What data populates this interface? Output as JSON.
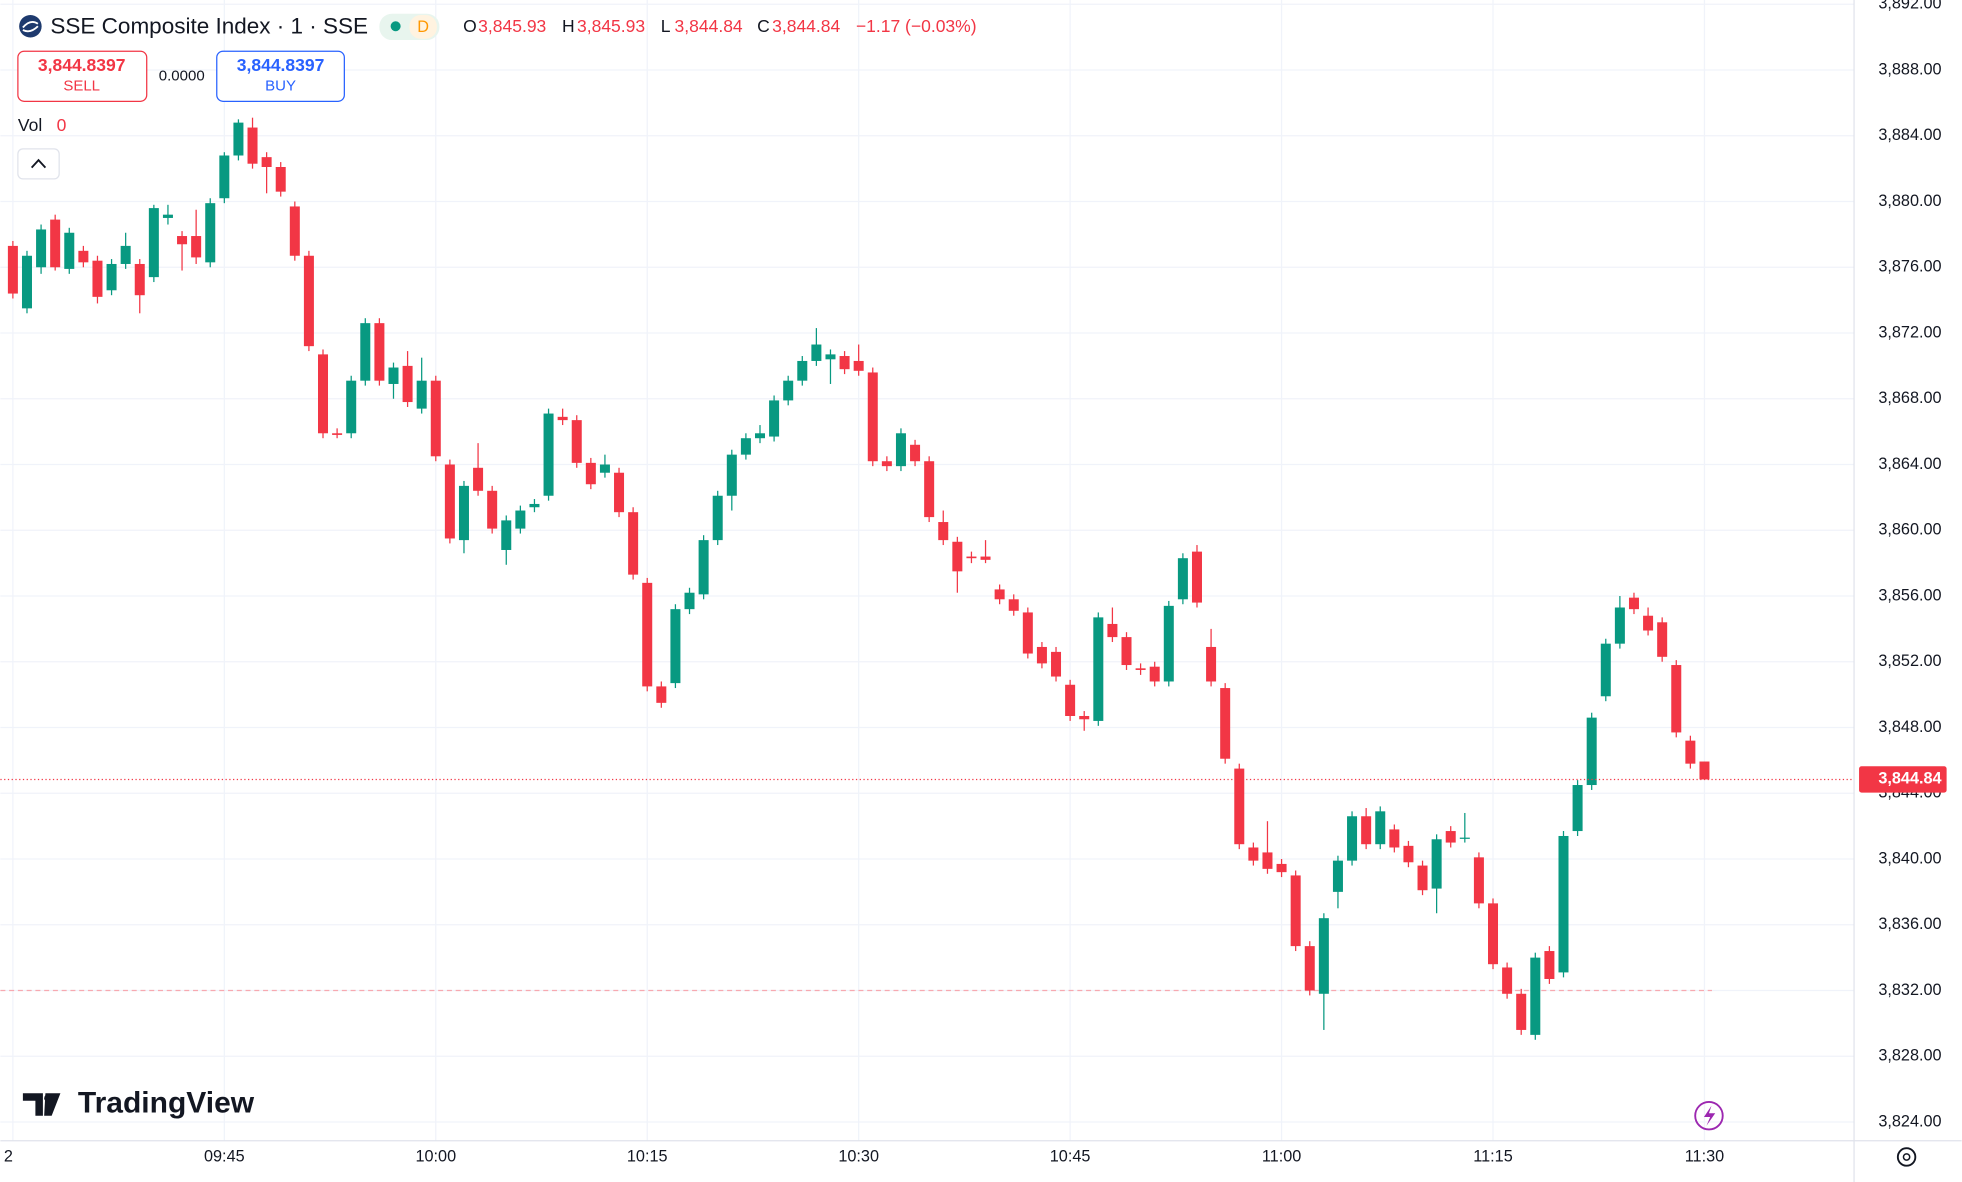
{
  "chart_data": {
    "type": "candlestick",
    "title": "SSE Composite Index · 1 · SSE",
    "interval_badge": "D",
    "legend": {
      "o_label": "O",
      "o": "3,845.93",
      "h_label": "H",
      "h": "3,845.93",
      "l_label": "L",
      "l": "3,844.84",
      "c_label": "C",
      "c": "3,844.84",
      "change": "−1.17 (−0.03%)"
    },
    "sell": {
      "price": "3,844.8397",
      "label": "SELL"
    },
    "spread": "0.0000",
    "buy": {
      "price": "3,844.8397",
      "label": "BUY"
    },
    "volume": {
      "label": "Vol",
      "value": "0"
    },
    "logo": "TradingView",
    "up_color": "#089981",
    "down_color": "#f23645",
    "grid": true,
    "ylim": [
      3822.86,
      3892.26
    ],
    "yticks": [
      {
        "value": 3824,
        "label": "3,824.00"
      },
      {
        "value": 3828,
        "label": "3,828.00"
      },
      {
        "value": 3832,
        "label": "3,832.00"
      },
      {
        "value": 3836,
        "label": "3,836.00"
      },
      {
        "value": 3840,
        "label": "3,840.00"
      },
      {
        "value": 3844,
        "label": "3,844.00"
      },
      {
        "value": 3848,
        "label": "3,848.00"
      },
      {
        "value": 3852,
        "label": "3,852.00"
      },
      {
        "value": 3856,
        "label": "3,856.00"
      },
      {
        "value": 3860,
        "label": "3,860.00"
      },
      {
        "value": 3864,
        "label": "3,864.00"
      },
      {
        "value": 3868,
        "label": "3,868.00"
      },
      {
        "value": 3872,
        "label": "3,872.00"
      },
      {
        "value": 3876,
        "label": "3,876.00"
      },
      {
        "value": 3880,
        "label": "3,880.00"
      },
      {
        "value": 3884,
        "label": "3,884.00"
      },
      {
        "value": 3888,
        "label": "3,888.00"
      },
      {
        "value": 3892,
        "label": "3,892.00"
      }
    ],
    "xticks": [
      {
        "value": 0,
        "label": "2"
      },
      {
        "value": 15,
        "label": "09:45"
      },
      {
        "value": 30,
        "label": "10:00"
      },
      {
        "value": 45,
        "label": "10:15"
      },
      {
        "value": 60,
        "label": "10:30"
      },
      {
        "value": 75,
        "label": "10:45"
      },
      {
        "value": 90,
        "label": "11:00"
      },
      {
        "value": 105,
        "label": "11:15"
      },
      {
        "value": 120,
        "label": "11:30"
      }
    ],
    "last_price": {
      "value": 3844.84,
      "label": "3,844.84"
    },
    "reference_line": 3832,
    "ohlc": [
      [
        3877.3,
        3877.6,
        3874.1,
        3874.4
      ],
      [
        3873.5,
        3877.0,
        3873.2,
        3876.7
      ],
      [
        3876.0,
        3878.6,
        3875.6,
        3878.3
      ],
      [
        3878.9,
        3879.2,
        3875.8,
        3876.0
      ],
      [
        3875.9,
        3878.4,
        3875.6,
        3878.1
      ],
      [
        3877.0,
        3877.3,
        3876.0,
        3876.3
      ],
      [
        3876.4,
        3876.7,
        3873.8,
        3874.2
      ],
      [
        3874.6,
        3876.5,
        3874.3,
        3876.2
      ],
      [
        3876.2,
        3878.1,
        3875.9,
        3877.3
      ],
      [
        3876.2,
        3876.5,
        3873.2,
        3874.3
      ],
      [
        3875.4,
        3879.8,
        3875.1,
        3879.6
      ],
      [
        3879.0,
        3879.8,
        3878.6,
        3879.2
      ],
      [
        3877.9,
        3878.2,
        3875.8,
        3877.4
      ],
      [
        3877.9,
        3879.5,
        3876.2,
        3876.6
      ],
      [
        3876.3,
        3880.2,
        3876.0,
        3879.9
      ],
      [
        3880.2,
        3883.0,
        3879.9,
        3882.8
      ],
      [
        3882.8,
        3885.0,
        3882.5,
        3884.8
      ],
      [
        3884.5,
        3885.1,
        3882.0,
        3882.3
      ],
      [
        3882.7,
        3883.0,
        3880.5,
        3882.1
      ],
      [
        3882.1,
        3882.4,
        3880.3,
        3880.6
      ],
      [
        3879.7,
        3880.0,
        3876.4,
        3876.7
      ],
      [
        3876.7,
        3877.0,
        3870.9,
        3871.2
      ],
      [
        3870.7,
        3871.0,
        3865.6,
        3865.9
      ],
      [
        3865.9,
        3866.2,
        3865.6,
        3865.8
      ],
      [
        3865.9,
        3869.4,
        3865.6,
        3869.1
      ],
      [
        3869.1,
        3872.9,
        3868.8,
        3872.6
      ],
      [
        3872.6,
        3872.9,
        3868.8,
        3869.1
      ],
      [
        3868.9,
        3870.2,
        3868.0,
        3869.9
      ],
      [
        3870.0,
        3870.9,
        3867.5,
        3867.8
      ],
      [
        3867.4,
        3870.5,
        3867.1,
        3869.1
      ],
      [
        3869.1,
        3869.4,
        3864.2,
        3864.5
      ],
      [
        3864.0,
        3864.3,
        3859.2,
        3859.5
      ],
      [
        3859.4,
        3863.0,
        3858.6,
        3862.7
      ],
      [
        3863.8,
        3865.3,
        3862.1,
        3862.4
      ],
      [
        3862.4,
        3862.7,
        3859.8,
        3860.1
      ],
      [
        3858.8,
        3860.9,
        3857.9,
        3860.6
      ],
      [
        3860.1,
        3861.5,
        3859.8,
        3861.2
      ],
      [
        3861.4,
        3861.9,
        3861.1,
        3861.6
      ],
      [
        3862.1,
        3867.4,
        3861.8,
        3867.1
      ],
      [
        3866.9,
        3867.4,
        3866.4,
        3866.7
      ],
      [
        3866.7,
        3867.0,
        3863.8,
        3864.1
      ],
      [
        3864.1,
        3864.4,
        3862.5,
        3862.8
      ],
      [
        3863.5,
        3864.6,
        3863.2,
        3864.0
      ],
      [
        3863.5,
        3863.8,
        3860.8,
        3861.1
      ],
      [
        3861.1,
        3861.4,
        3857.0,
        3857.3
      ],
      [
        3856.8,
        3857.1,
        3850.2,
        3850.5
      ],
      [
        3850.5,
        3850.8,
        3849.2,
        3849.5
      ],
      [
        3850.7,
        3855.5,
        3850.4,
        3855.2
      ],
      [
        3855.2,
        3856.5,
        3854.9,
        3856.2
      ],
      [
        3856.1,
        3859.7,
        3855.8,
        3859.4
      ],
      [
        3859.4,
        3862.4,
        3859.1,
        3862.1
      ],
      [
        3862.1,
        3864.9,
        3861.2,
        3864.6
      ],
      [
        3864.6,
        3865.9,
        3864.3,
        3865.6
      ],
      [
        3865.6,
        3866.4,
        3865.3,
        3865.9
      ],
      [
        3865.7,
        3868.2,
        3865.4,
        3867.9
      ],
      [
        3867.9,
        3869.4,
        3867.6,
        3869.1
      ],
      [
        3869.1,
        3870.6,
        3868.8,
        3870.3
      ],
      [
        3870.3,
        3872.3,
        3870.0,
        3871.3
      ],
      [
        3870.4,
        3871.0,
        3868.9,
        3870.7
      ],
      [
        3870.6,
        3870.9,
        3869.5,
        3869.8
      ],
      [
        3870.3,
        3871.3,
        3869.4,
        3869.7
      ],
      [
        3869.6,
        3869.9,
        3863.9,
        3864.2
      ],
      [
        3864.2,
        3864.5,
        3863.6,
        3863.9
      ],
      [
        3863.9,
        3866.2,
        3863.6,
        3865.9
      ],
      [
        3865.2,
        3865.5,
        3863.9,
        3864.2
      ],
      [
        3864.2,
        3864.5,
        3860.5,
        3860.8
      ],
      [
        3860.5,
        3861.2,
        3859.1,
        3859.4
      ],
      [
        3859.3,
        3859.6,
        3856.2,
        3857.5
      ],
      [
        3858.4,
        3858.7,
        3858.0,
        3858.3
      ],
      [
        3858.4,
        3859.4,
        3858.0,
        3858.2
      ],
      [
        3856.4,
        3856.7,
        3855.5,
        3855.8
      ],
      [
        3855.8,
        3856.1,
        3854.8,
        3855.1
      ],
      [
        3855.0,
        3855.3,
        3852.2,
        3852.5
      ],
      [
        3852.9,
        3853.2,
        3851.6,
        3851.9
      ],
      [
        3852.6,
        3852.9,
        3850.8,
        3851.1
      ],
      [
        3850.6,
        3850.9,
        3848.4,
        3848.7
      ],
      [
        3848.7,
        3849.0,
        3847.8,
        3848.5
      ],
      [
        3848.4,
        3855.0,
        3848.1,
        3854.7
      ],
      [
        3854.3,
        3855.3,
        3853.2,
        3853.5
      ],
      [
        3853.5,
        3853.8,
        3851.5,
        3851.8
      ],
      [
        3851.6,
        3851.9,
        3851.2,
        3851.5
      ],
      [
        3851.7,
        3852.0,
        3850.5,
        3850.8
      ],
      [
        3850.8,
        3855.7,
        3850.5,
        3855.4
      ],
      [
        3855.8,
        3858.6,
        3855.5,
        3858.3
      ],
      [
        3858.7,
        3859.1,
        3855.3,
        3855.6
      ],
      [
        3852.9,
        3854.0,
        3850.5,
        3850.8
      ],
      [
        3850.4,
        3850.7,
        3845.8,
        3846.1
      ],
      [
        3845.5,
        3845.8,
        3840.6,
        3840.9
      ],
      [
        3840.7,
        3841.0,
        3839.6,
        3839.9
      ],
      [
        3840.4,
        3842.3,
        3839.1,
        3839.4
      ],
      [
        3839.7,
        3840.0,
        3838.9,
        3839.2
      ],
      [
        3839.0,
        3839.3,
        3834.4,
        3834.7
      ],
      [
        3834.7,
        3835.0,
        3831.7,
        3832.0
      ],
      [
        3831.8,
        3836.7,
        3829.6,
        3836.4
      ],
      [
        3838.0,
        3840.2,
        3837.0,
        3839.9
      ],
      [
        3839.9,
        3842.9,
        3839.6,
        3842.6
      ],
      [
        3842.6,
        3843.1,
        3840.6,
        3840.9
      ],
      [
        3840.9,
        3843.2,
        3840.6,
        3842.9
      ],
      [
        3841.8,
        3842.1,
        3840.4,
        3840.7
      ],
      [
        3840.8,
        3841.1,
        3839.5,
        3839.8
      ],
      [
        3839.6,
        3839.9,
        3837.8,
        3838.1
      ],
      [
        3838.2,
        3841.5,
        3836.7,
        3841.2
      ],
      [
        3841.7,
        3842.0,
        3840.7,
        3841.0
      ],
      [
        3841.3,
        3842.8,
        3841.0,
        3841.3
      ],
      [
        3840.1,
        3840.4,
        3837.0,
        3837.3
      ],
      [
        3837.3,
        3837.6,
        3833.3,
        3833.6
      ],
      [
        3833.4,
        3833.7,
        3831.5,
        3831.8
      ],
      [
        3831.8,
        3832.1,
        3829.3,
        3829.6
      ],
      [
        3829.3,
        3834.3,
        3829.0,
        3834.0
      ],
      [
        3834.4,
        3834.7,
        3832.4,
        3832.7
      ],
      [
        3833.1,
        3841.7,
        3832.8,
        3841.4
      ],
      [
        3841.7,
        3844.8,
        3841.4,
        3844.5
      ],
      [
        3844.5,
        3848.9,
        3844.2,
        3848.6
      ],
      [
        3849.9,
        3853.4,
        3849.6,
        3853.1
      ],
      [
        3853.1,
        3856.0,
        3852.8,
        3855.3
      ],
      [
        3855.9,
        3856.2,
        3854.9,
        3855.2
      ],
      [
        3854.8,
        3855.3,
        3853.6,
        3853.9
      ],
      [
        3854.4,
        3854.7,
        3852.0,
        3852.3
      ],
      [
        3851.8,
        3852.1,
        3847.4,
        3847.7
      ],
      [
        3847.2,
        3847.5,
        3845.5,
        3845.8
      ],
      [
        3845.93,
        3845.93,
        3844.84,
        3844.84
      ]
    ]
  }
}
